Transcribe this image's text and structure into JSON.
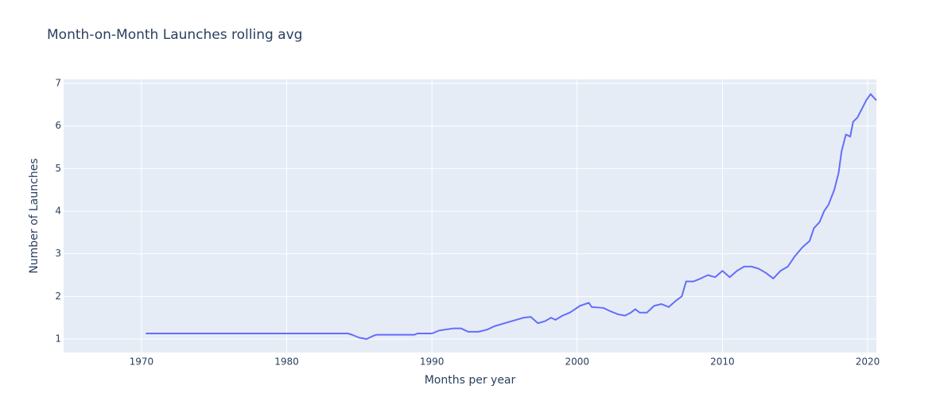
{
  "chart_data": {
    "type": "line",
    "title": "Month-on-Month Launches rolling avg",
    "x_label": "Months per year",
    "y_label": "Number of Launches",
    "x": [
      1970.3,
      1975,
      1980,
      1984.2,
      1984.5,
      1985,
      1985.5,
      1986,
      1986.2,
      1988.8,
      1989,
      1990,
      1990.5,
      1991.5,
      1992,
      1992.5,
      1993.2,
      1993.8,
      1994.3,
      1994.8,
      1995.5,
      1996.3,
      1996.8,
      1997.3,
      1997.8,
      1998.2,
      1998.5,
      1999,
      1999.5,
      2000.2,
      2000.8,
      2001,
      2001.8,
      2002.3,
      2002.8,
      2003.3,
      2003.7,
      2004,
      2004.3,
      2004.8,
      2005.3,
      2005.8,
      2006.3,
      2006.8,
      2007.2,
      2007.5,
      2008,
      2008.5,
      2009,
      2009.5,
      2010,
      2010.5,
      2011,
      2011.5,
      2012,
      2012.5,
      2013,
      2013.5,
      2014,
      2014.5,
      2015,
      2015.5,
      2016,
      2016.3,
      2016.7,
      2017,
      2017.3,
      2017.7,
      2018,
      2018.2,
      2018.5,
      2018.8,
      2019,
      2019.3,
      2019.6,
      2019.9,
      2020.2,
      2020.6
    ],
    "series": [
      {
        "name": "rolling avg",
        "color": "#636efa",
        "values": [
          1.13,
          1.13,
          1.13,
          1.13,
          1.1,
          1.03,
          1.0,
          1.08,
          1.1,
          1.1,
          1.13,
          1.13,
          1.2,
          1.25,
          1.25,
          1.17,
          1.17,
          1.22,
          1.3,
          1.35,
          1.42,
          1.5,
          1.52,
          1.37,
          1.42,
          1.5,
          1.45,
          1.55,
          1.62,
          1.78,
          1.85,
          1.75,
          1.73,
          1.65,
          1.58,
          1.55,
          1.62,
          1.7,
          1.62,
          1.62,
          1.78,
          1.82,
          1.75,
          1.9,
          2.0,
          2.35,
          2.35,
          2.42,
          2.5,
          2.45,
          2.6,
          2.45,
          2.6,
          2.7,
          2.7,
          2.65,
          2.55,
          2.42,
          2.6,
          2.7,
          2.95,
          3.15,
          3.3,
          3.6,
          3.75,
          4.0,
          4.15,
          4.5,
          4.9,
          5.4,
          5.8,
          5.75,
          6.1,
          6.2,
          6.4,
          6.6,
          6.75,
          6.6
        ]
      }
    ],
    "xlim": [
      1964.64,
      2020.6
    ],
    "xticks": [
      1970,
      1980,
      1990,
      2000,
      2010,
      2020
    ],
    "ylim": [
      0.683,
      7.093
    ],
    "yticks": [
      1,
      2,
      3,
      4,
      5,
      6,
      7
    ],
    "grid": true
  }
}
